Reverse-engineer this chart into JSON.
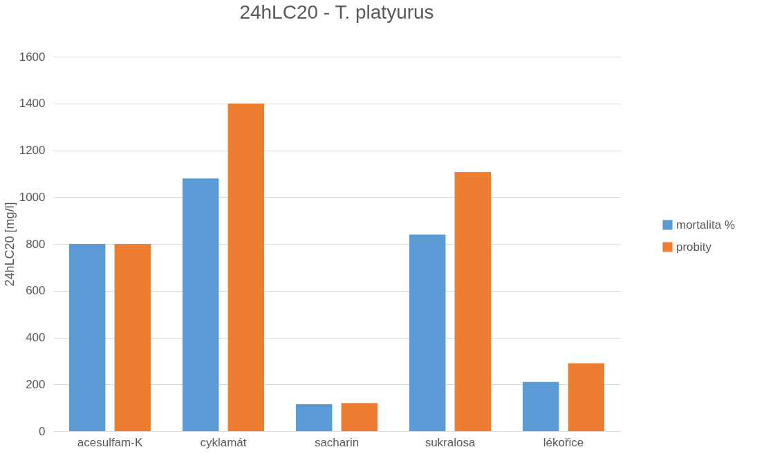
{
  "chart_data": {
    "type": "bar",
    "title": "24hLC20 - T. platyurus",
    "ylabel": "24hLC20 [mg/l]",
    "categories": [
      "acesulfam-K",
      "cyklamát",
      "sacharin",
      "sukralosa",
      "lékořice"
    ],
    "series": [
      {
        "name": "mortalita %",
        "color": "#5b9bd5",
        "values": [
          800,
          1080,
          115,
          840,
          210
        ]
      },
      {
        "name": "probity",
        "color": "#ed7d31",
        "values": [
          800,
          1400,
          120,
          1107,
          290
        ]
      }
    ],
    "ylim": [
      0,
      1600
    ],
    "yticks": [
      0,
      200,
      400,
      600,
      800,
      1000,
      1200,
      1400,
      1600
    ],
    "grid": "y",
    "legend": "right"
  }
}
